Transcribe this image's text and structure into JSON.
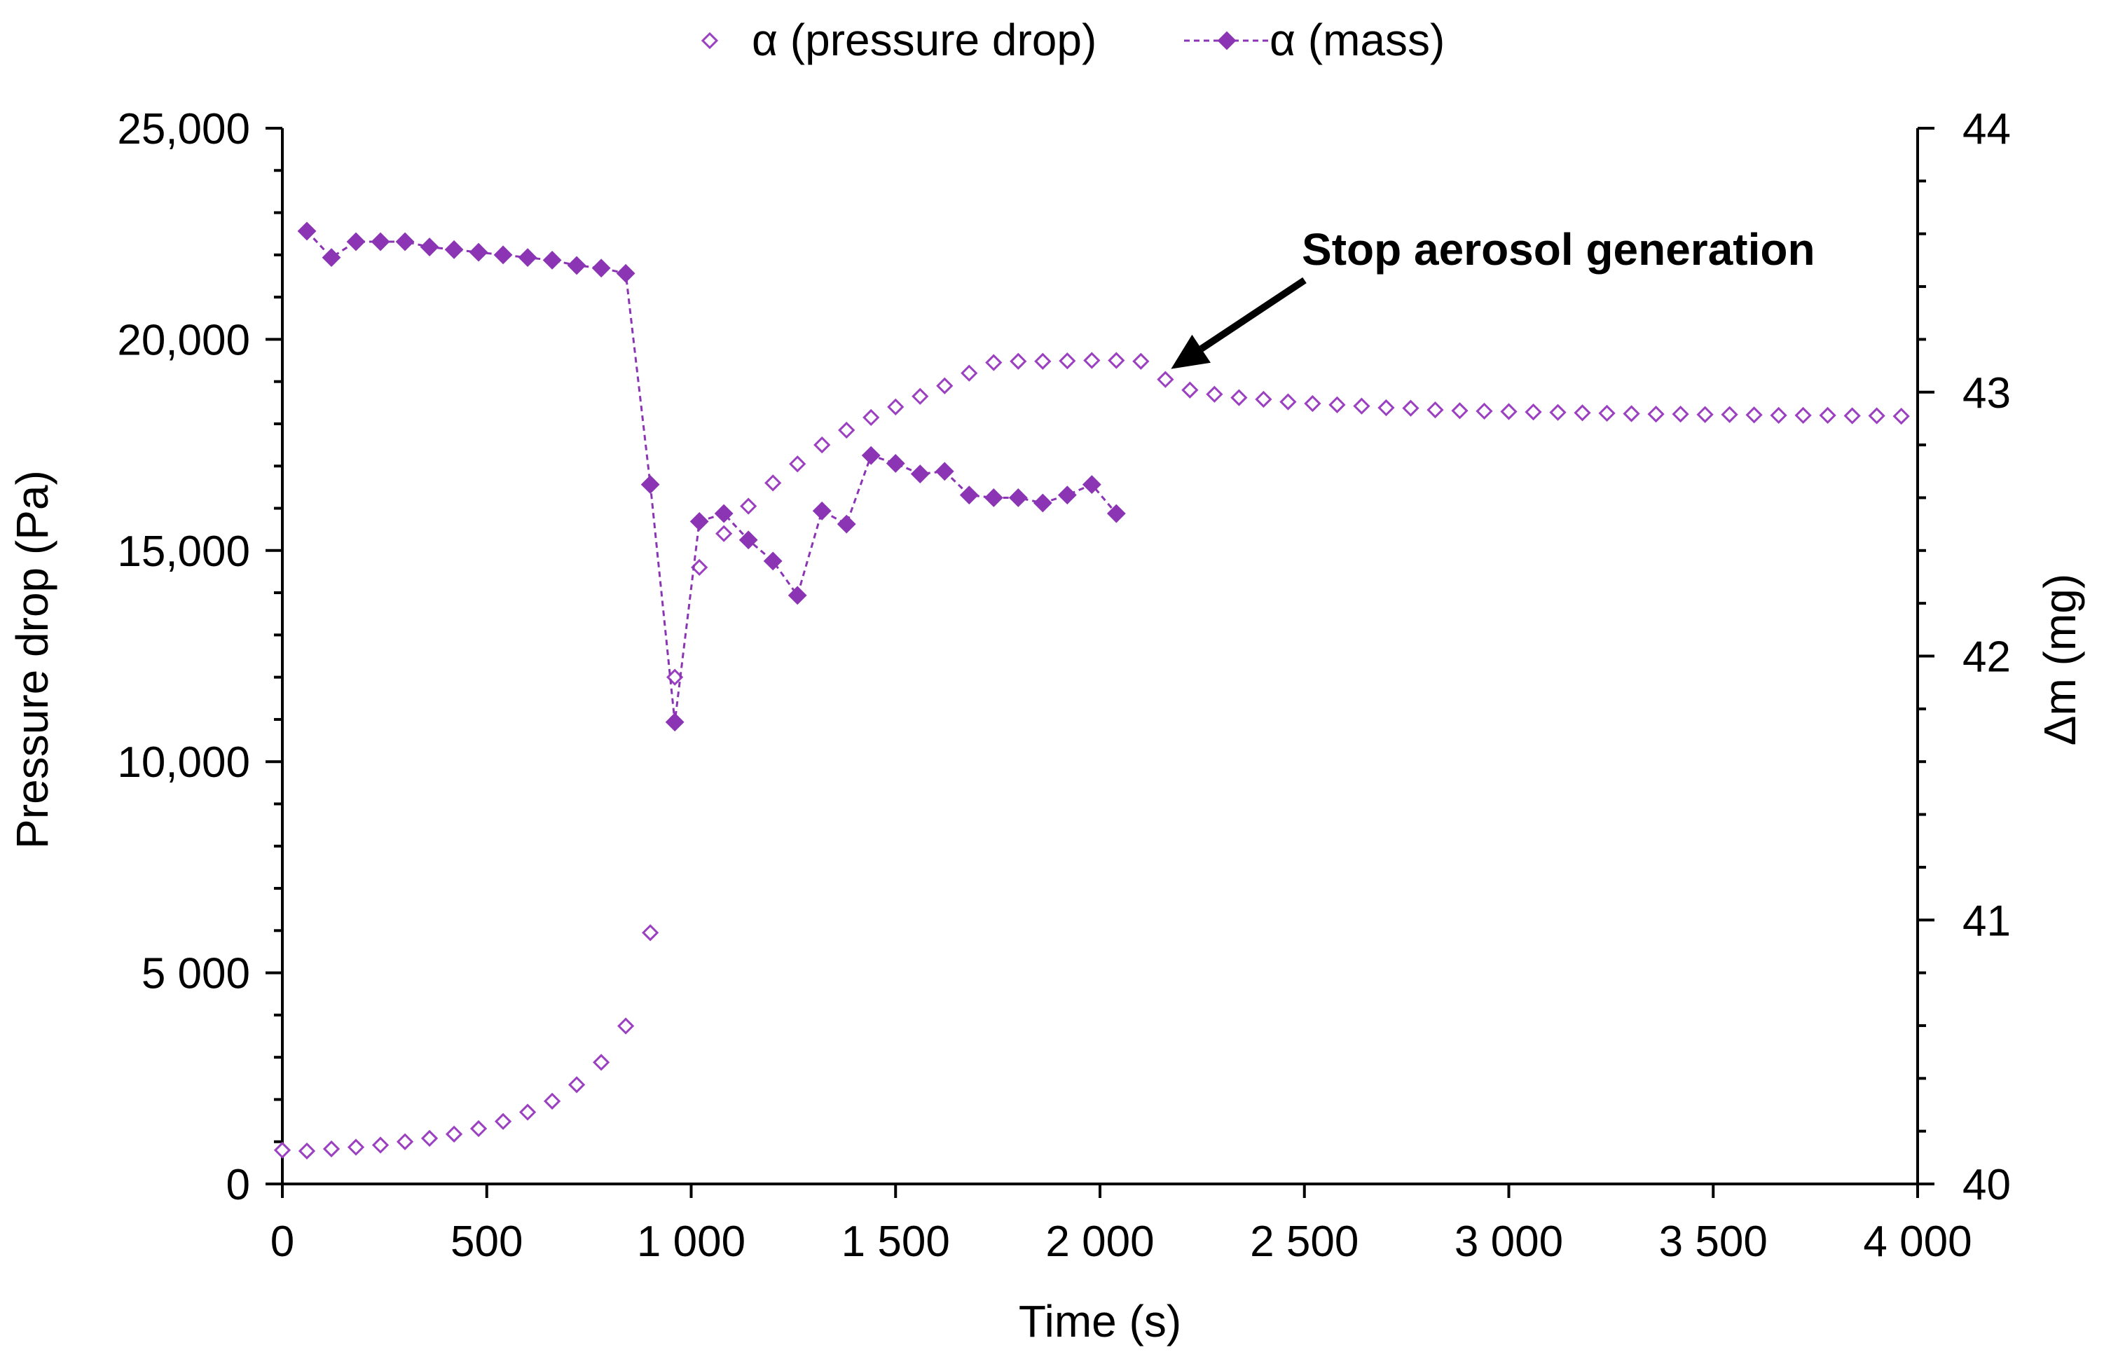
{
  "chart_data": {
    "type": "scatter",
    "title": "",
    "xlabel": "Time (s)",
    "ylabel_left": "Pressure drop (Pa)",
    "ylabel_right": "Δm (mg)",
    "xlim": [
      0,
      4000
    ],
    "ylim_left": [
      0,
      25000
    ],
    "ylim_right": [
      40,
      44
    ],
    "grid": false,
    "legend_position": "top-center",
    "x_ticks": [
      0,
      500,
      1000,
      1500,
      2000,
      2500,
      3000,
      3500,
      4000
    ],
    "x_tick_labels": [
      "0",
      "500",
      "1 000",
      "1 500",
      "2 000",
      "2 500",
      "3 000",
      "3 500",
      "4 000"
    ],
    "y_left_ticks": [
      0,
      5000,
      10000,
      15000,
      20000,
      25000
    ],
    "y_left_tick_labels": [
      "0",
      "5 000",
      "10,000",
      "15,000",
      "20,000",
      "25,000"
    ],
    "y_right_ticks": [
      40,
      41,
      42,
      43,
      44
    ],
    "y_right_tick_labels": [
      "40",
      "41",
      "42",
      "43",
      "44"
    ],
    "series": [
      {
        "name": "α (pressure drop)",
        "axis": "left",
        "marker": "open-diamond",
        "line": "none",
        "color": "#9B40C0",
        "x": [
          0,
          60,
          120,
          180,
          240,
          300,
          360,
          420,
          480,
          540,
          600,
          660,
          720,
          780,
          840,
          900,
          960,
          1020,
          1080,
          1140,
          1200,
          1260,
          1320,
          1380,
          1440,
          1500,
          1560,
          1620,
          1680,
          1740,
          1800,
          1860,
          1920,
          1980,
          2040,
          2100,
          2160,
          2220,
          2280,
          2340,
          2400,
          2460,
          2520,
          2580,
          2640,
          2700,
          2760,
          2820,
          2880,
          2940,
          3000,
          3060,
          3120,
          3180,
          3240,
          3300,
          3360,
          3420,
          3480,
          3540,
          3600,
          3660,
          3720,
          3780,
          3840,
          3900,
          3960
        ],
        "y": [
          800,
          780,
          830,
          870,
          920,
          1000,
          1080,
          1180,
          1310,
          1480,
          1700,
          1960,
          2350,
          2880,
          3740,
          5950,
          12000,
          14600,
          15400,
          16050,
          16600,
          17050,
          17500,
          17850,
          18150,
          18400,
          18650,
          18900,
          19200,
          19450,
          19480,
          19480,
          19490,
          19500,
          19500,
          19480,
          19050,
          18800,
          18700,
          18620,
          18580,
          18520,
          18480,
          18450,
          18420,
          18380,
          18370,
          18330,
          18310,
          18300,
          18290,
          18280,
          18270,
          18260,
          18250,
          18240,
          18230,
          18230,
          18220,
          18220,
          18210,
          18200,
          18200,
          18200,
          18190,
          18190,
          18180
        ]
      },
      {
        "name": "α (mass)",
        "axis": "right",
        "marker": "filled-diamond",
        "line": "dashed",
        "color": "#8B35B5",
        "x": [
          60,
          120,
          180,
          240,
          300,
          360,
          420,
          480,
          540,
          600,
          660,
          720,
          780,
          840,
          900,
          960,
          1020,
          1080,
          1140,
          1200,
          1260,
          1320,
          1380,
          1440,
          1500,
          1560,
          1620,
          1680,
          1740,
          1800,
          1860,
          1920,
          1980,
          2040
        ],
        "y": [
          43.61,
          43.51,
          43.57,
          43.57,
          43.57,
          43.55,
          43.54,
          43.53,
          43.52,
          43.51,
          43.5,
          43.48,
          43.47,
          43.45,
          42.65,
          41.75,
          42.51,
          42.54,
          42.44,
          42.36,
          42.23,
          42.55,
          42.5,
          42.76,
          42.73,
          42.69,
          42.7,
          42.61,
          42.6,
          42.6,
          42.58,
          42.61,
          42.65,
          42.54
        ]
      }
    ],
    "annotations": [
      {
        "text": "Stop aerosol generation",
        "arrow_to_x": 2160,
        "arrow_to_y_left": 19400
      }
    ]
  }
}
